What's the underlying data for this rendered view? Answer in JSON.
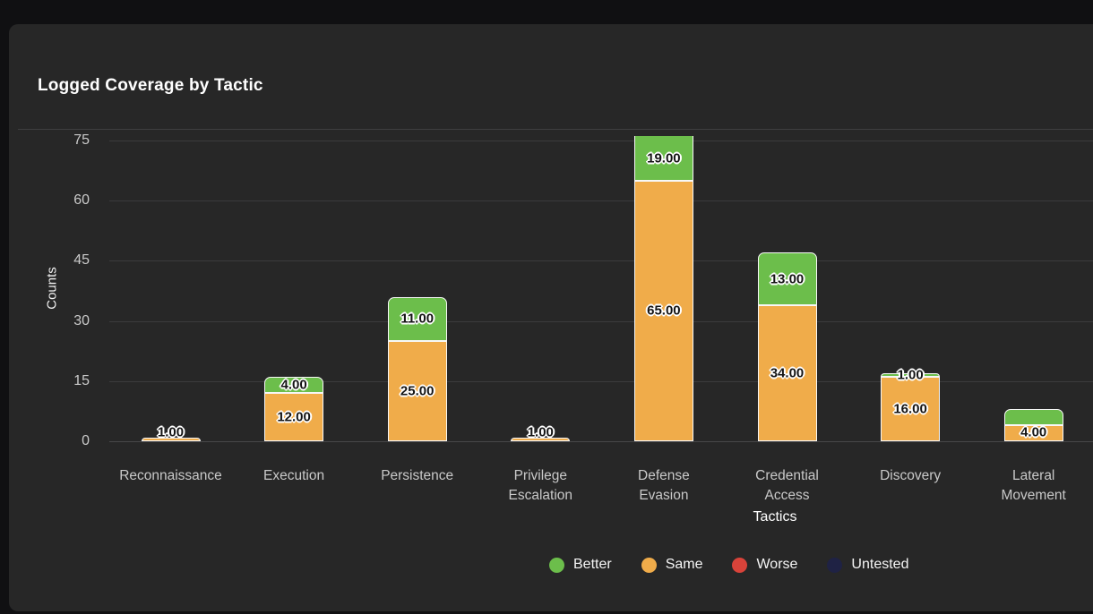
{
  "card": {
    "title": "Logged Coverage by Tactic"
  },
  "chart_data": {
    "type": "bar",
    "stacked": true,
    "title": "Logged Coverage by Tactic",
    "xlabel": "Tactics",
    "ylabel": "Counts",
    "ylim": [
      0,
      76
    ],
    "grid": true,
    "legend_position": "bottom",
    "y_ticks": [
      0,
      15,
      30,
      45,
      60,
      75
    ],
    "categories": [
      "Reconnaissance",
      "Execution",
      "Persistence",
      "Privilege Escalation",
      "Defense Evasion",
      "Credential Access",
      "Discovery",
      "Lateral Movement"
    ],
    "category_lines": [
      [
        "Reconnaissance"
      ],
      [
        "Execution"
      ],
      [
        "Persistence"
      ],
      [
        "Privilege",
        "Escalation"
      ],
      [
        "Defense",
        "Evasion"
      ],
      [
        "Credential",
        "Access"
      ],
      [
        "Discovery"
      ],
      [
        "Lateral",
        "Movement"
      ]
    ],
    "series": [
      {
        "name": "Same",
        "color": "#f0ac4a",
        "values": [
          1,
          12,
          25,
          1,
          65,
          34,
          16,
          4
        ],
        "labels": [
          "1.00",
          "12.00",
          "25.00",
          "1.00",
          "65.00",
          "34.00",
          "16.00",
          "4.00"
        ]
      },
      {
        "name": "Better",
        "color": "#6cbe4b",
        "values": [
          0,
          4,
          11,
          0,
          19,
          13,
          1,
          4
        ],
        "labels": [
          null,
          "4.00",
          "11.00",
          null,
          "19.00",
          "13.00",
          "1.00",
          null
        ]
      }
    ],
    "legend": [
      {
        "label": "Better",
        "color": "#6cbe4b"
      },
      {
        "label": "Same",
        "color": "#f0ac4a"
      },
      {
        "label": "Worse",
        "color": "#d9433a"
      },
      {
        "label": "Untested",
        "color": "#1f2244"
      }
    ]
  }
}
